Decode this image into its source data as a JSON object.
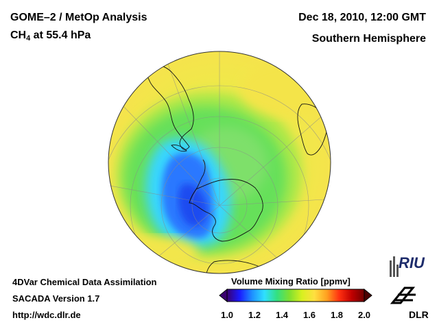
{
  "header": {
    "title_left": "GOME–2 / MetOp Analysis",
    "species": "CH",
    "species_sub": "4",
    "level": " at 55.4 hPa",
    "datetime": "Dec 18, 2010, 12:00 GMT",
    "region": "Southern Hemisphere"
  },
  "footer": {
    "line1": "4DVar Chemical Data Assimilation",
    "line2": "SACADA Version 1.7",
    "line3": "http://wdc.dlr.de"
  },
  "colorbar": {
    "title": "Volume Mixing Ratio [ppmv]",
    "min": 1.0,
    "max": 2.0,
    "ticks": [
      "1.0",
      "1.2",
      "1.4",
      "1.6",
      "1.8",
      "2.0"
    ],
    "tick_values": [
      1.0,
      1.2,
      1.4,
      1.6,
      1.8,
      2.0
    ],
    "colors": [
      "#3a0070",
      "#1a1aff",
      "#1e8fff",
      "#2fe0ff",
      "#33e080",
      "#7ee030",
      "#d8f020",
      "#ffe040",
      "#ffa020",
      "#ff3010",
      "#c00000",
      "#700000"
    ]
  },
  "map": {
    "projection": "orthographic, centered on South Pole",
    "field_colors": {
      "low": "#2166ff",
      "mid_low": "#34d8ff",
      "mid": "#55e060",
      "mid_high": "#c8ee3a",
      "high": "#f5e64a"
    }
  },
  "logos": {
    "riu": "RIU",
    "dlr": "DLR"
  }
}
